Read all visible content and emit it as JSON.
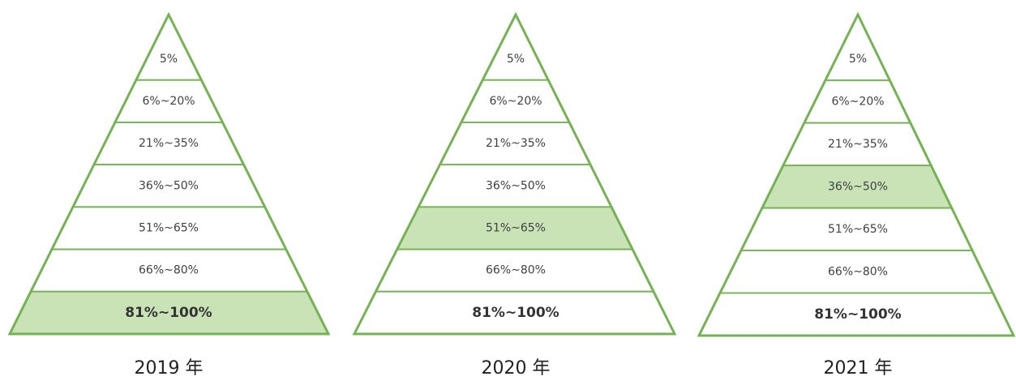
{
  "pyramids": [
    {
      "label": "2019 年",
      "tiers": [
        {
          "text": "5%",
          "highlighted": false
        },
        {
          "text": "6%~20%",
          "highlighted": false
        },
        {
          "text": "21%~35%",
          "highlighted": false
        },
        {
          "text": "36%~50%",
          "highlighted": false
        },
        {
          "text": "51%~65%",
          "highlighted": false
        },
        {
          "text": "66%~80%",
          "highlighted": false
        },
        {
          "text": "81%~100%",
          "highlighted": true
        }
      ]
    },
    {
      "label": "2020 年",
      "tiers": [
        {
          "text": "5%",
          "highlighted": false
        },
        {
          "text": "6%~20%",
          "highlighted": false
        },
        {
          "text": "21%~35%",
          "highlighted": false
        },
        {
          "text": "36%~50%",
          "highlighted": false
        },
        {
          "text": "51%~65%",
          "highlighted": true
        },
        {
          "text": "66%~80%",
          "highlighted": false
        },
        {
          "text": "81%~100%",
          "highlighted": false
        }
      ]
    },
    {
      "label": "2021 年",
      "tiers": [
        {
          "text": "5%",
          "highlighted": false
        },
        {
          "text": "6%~20%",
          "highlighted": false
        },
        {
          "text": "21%~35%",
          "highlighted": false
        },
        {
          "text": "36%~50%",
          "highlighted": true
        },
        {
          "text": "51%~65%",
          "highlighted": false
        },
        {
          "text": "66%~80%",
          "highlighted": false
        },
        {
          "text": "81%~100%",
          "highlighted": false
        }
      ]
    }
  ]
}
